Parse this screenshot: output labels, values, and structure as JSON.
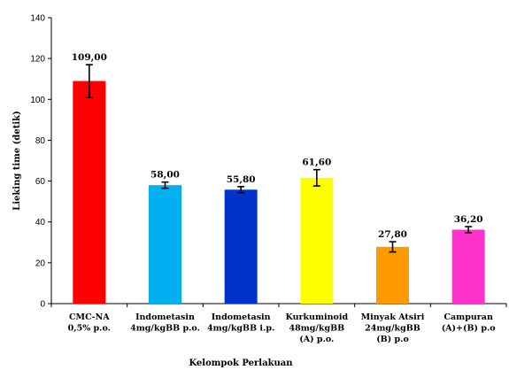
{
  "chart_data": {
    "type": "bar",
    "xlabel": "Kelompok Perlakuan",
    "ylabel": "Lieking time (detik)",
    "ylim": [
      0,
      140
    ],
    "yticks": [
      0,
      20,
      40,
      60,
      80,
      100,
      120,
      140
    ],
    "grid": false,
    "categories": [
      [
        "CMC-NA",
        "0,5% p.o."
      ],
      [
        "Indometasin",
        "4mg/kgBB p.o."
      ],
      [
        "Indometasin",
        "4mg/kgBB i.p."
      ],
      [
        "Kurkuminoid",
        "48mg/kgBB",
        "(A) p.o."
      ],
      [
        "Minyak Atsiri",
        "24mg/kgBB",
        "(B) p.o"
      ],
      [
        "Campuran",
        "(A)+(B) p.o"
      ]
    ],
    "values": [
      109.0,
      58.0,
      55.8,
      61.6,
      27.8,
      36.2
    ],
    "value_labels": [
      "109,00",
      "58,00",
      "55,80",
      "61,60",
      "27,80",
      "36,20"
    ],
    "errors": [
      8,
      1.5,
      1.5,
      4,
      2.5,
      1.5
    ],
    "colors": [
      "#ff0000",
      "#00b0f0",
      "#0033cc",
      "#ffff00",
      "#ff9900",
      "#ff33cc"
    ]
  }
}
